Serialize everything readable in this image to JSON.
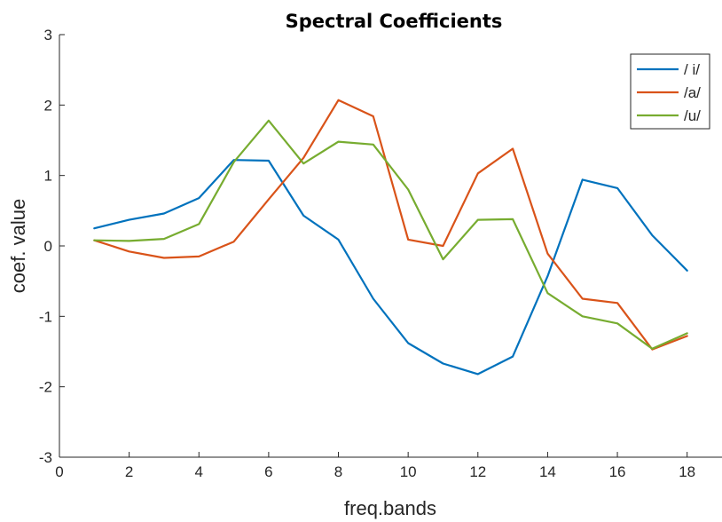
{
  "chart_data": {
    "type": "line",
    "title": "Spectral Coefficients",
    "xlabel": "freq.bands",
    "ylabel": "coef. value",
    "xlim": [
      0,
      19
    ],
    "ylim": [
      -3,
      3
    ],
    "xticks": [
      0,
      2,
      4,
      6,
      8,
      10,
      12,
      14,
      16,
      18
    ],
    "yticks": [
      -3,
      -2,
      -1,
      0,
      1,
      2,
      3
    ],
    "grid": false,
    "legend_position": "top-right",
    "x": [
      1,
      2,
      3,
      4,
      5,
      6,
      7,
      8,
      9,
      10,
      11,
      12,
      13,
      14,
      15,
      16,
      17,
      18
    ],
    "series": [
      {
        "name": "/ i/",
        "color": "#0072BD",
        "values": [
          0.25,
          0.37,
          0.46,
          0.68,
          1.22,
          1.21,
          0.43,
          0.09,
          -0.75,
          -1.38,
          -1.67,
          -1.82,
          -1.57,
          -0.43,
          0.94,
          0.82,
          0.15,
          -0.35
        ]
      },
      {
        "name": "/a/",
        "color": "#D95319",
        "values": [
          0.08,
          -0.08,
          -0.17,
          -0.15,
          0.06,
          0.66,
          1.25,
          2.07,
          1.84,
          0.09,
          0.0,
          1.03,
          1.38,
          -0.11,
          -0.75,
          -0.81,
          -1.47,
          -1.28
        ]
      },
      {
        "name": "/u/",
        "color": "#77AC30",
        "values": [
          0.08,
          0.07,
          0.1,
          0.31,
          1.19,
          1.78,
          1.17,
          1.48,
          1.44,
          0.8,
          -0.19,
          0.37,
          0.38,
          -0.67,
          -1.0,
          -1.1,
          -1.46,
          -1.24
        ]
      }
    ]
  }
}
